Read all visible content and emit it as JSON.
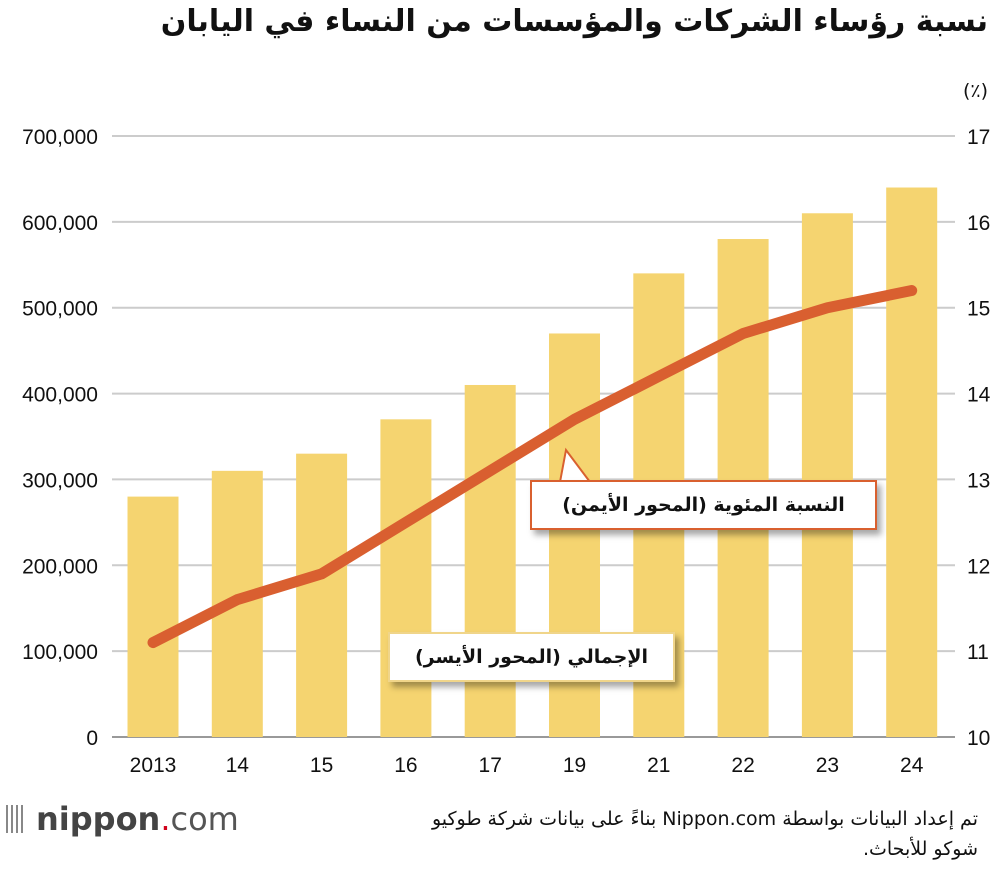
{
  "title": "نسبة رؤساء الشركات والمؤسسات من النساء في اليابان",
  "right_unit": "(٪)",
  "source": "تم إعداد البيانات بواسطة Nippon.com بناءً على بيانات شركة طوكيو شوكو للأبحاث.",
  "logo": {
    "brand": "nippon",
    "dot": ".",
    "suffix": "com"
  },
  "colors": {
    "bars": "#f5d470",
    "line": "#d95f30",
    "grid": "#cccccc"
  },
  "chart_data": {
    "type": "bar+line",
    "categories": [
      "2013",
      "14",
      "15",
      "16",
      "17",
      "19",
      "21",
      "22",
      "23",
      "24"
    ],
    "series": [
      {
        "name": "الإجمالي (المحور الأيسر)",
        "type": "bar",
        "axis": "left",
        "values": [
          280000,
          310000,
          330000,
          370000,
          410000,
          470000,
          540000,
          580000,
          610000,
          640000
        ]
      },
      {
        "name": "النسبة المئوية (المحور الأيمن)",
        "type": "line",
        "axis": "right",
        "values": [
          11.1,
          11.6,
          11.9,
          12.5,
          13.1,
          13.7,
          14.2,
          14.7,
          15.0,
          15.2
        ]
      }
    ],
    "left_axis": {
      "ylim": [
        0,
        700000
      ],
      "ticks": [
        "0",
        "100,000",
        "200,000",
        "300,000",
        "400,000",
        "500,000",
        "600,000",
        "700,000"
      ]
    },
    "right_axis": {
      "ylim": [
        10,
        17
      ],
      "ticks": [
        "10",
        "11",
        "12",
        "13",
        "14",
        "15",
        "16",
        "17"
      ],
      "unit": "(٪)"
    },
    "grid": true,
    "legend": "callouts"
  }
}
